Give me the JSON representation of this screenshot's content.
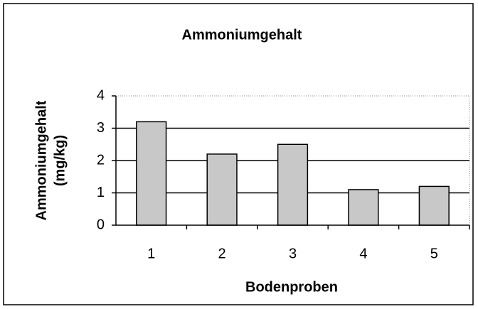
{
  "chart_data": {
    "type": "bar",
    "title": "Ammoniumgehalt",
    "xlabel": "Bodenproben",
    "ylabel": [
      "Ammoniumgehalt",
      "(mg/kg)"
    ],
    "categories": [
      "1",
      "2",
      "3",
      "4",
      "5"
    ],
    "values": [
      3.2,
      2.2,
      2.5,
      1.1,
      1.2
    ],
    "color": "#c8c8c8",
    "ylim": [
      0,
      4
    ],
    "yticks": [
      0,
      1,
      2,
      3,
      4
    ],
    "grid": true
  }
}
